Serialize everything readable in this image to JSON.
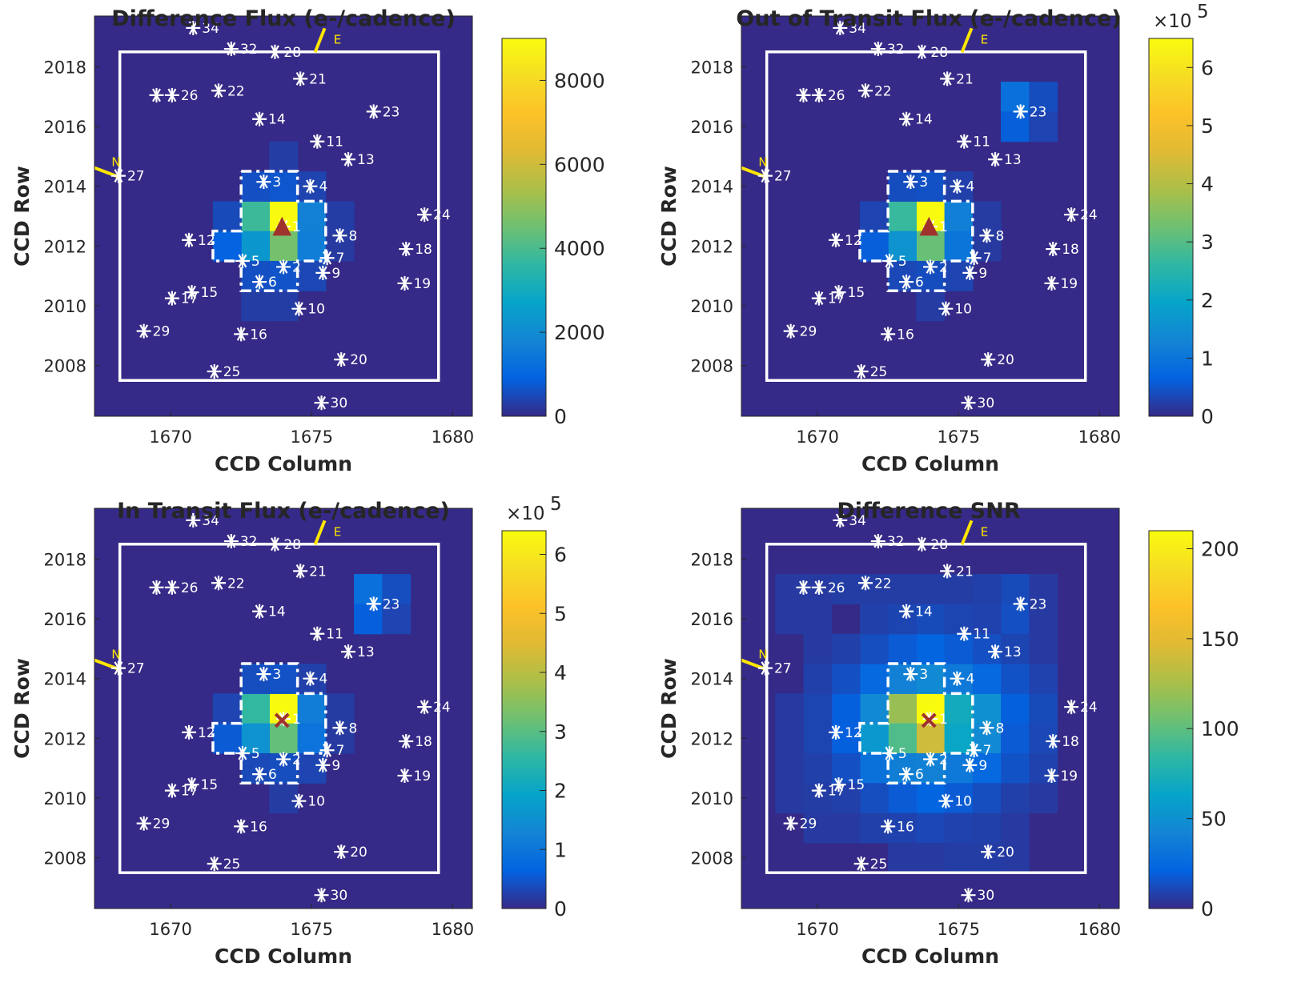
{
  "chart_data": [
    {
      "type": "heatmap",
      "title": "Difference Flux (e-/cadence)",
      "xlabel": "CCD Column",
      "ylabel": "CCD Row",
      "xlim": [
        1667.3,
        1680.7
      ],
      "ylim": [
        2006.3,
        2019.7
      ],
      "xticks": [
        1670,
        1675,
        1680
      ],
      "yticks": [
        2008,
        2010,
        2012,
        2014,
        2016,
        2018
      ],
      "clim": [
        0,
        9000
      ],
      "colorbar_ticks": [
        0,
        2000,
        4000,
        6000,
        8000
      ],
      "colorbar_exponent": "",
      "cells": [
        {
          "col": 1674,
          "row": 2013,
          "v": 9000
        },
        {
          "col": 1673,
          "row": 2013,
          "v": 3800
        },
        {
          "col": 1674,
          "row": 2012,
          "v": 4600
        },
        {
          "col": 1673,
          "row": 2012,
          "v": 2300
        },
        {
          "col": 1675,
          "row": 2013,
          "v": 1700
        },
        {
          "col": 1675,
          "row": 2012,
          "v": 1600
        },
        {
          "col": 1672,
          "row": 2012,
          "v": 900
        },
        {
          "col": 1674,
          "row": 2014,
          "v": 700
        },
        {
          "col": 1673,
          "row": 2014,
          "v": 600
        },
        {
          "col": 1674,
          "row": 2011,
          "v": 650
        },
        {
          "col": 1673,
          "row": 2011,
          "v": 600
        },
        {
          "col": 1675,
          "row": 2014,
          "v": 400
        },
        {
          "col": 1672,
          "row": 2013,
          "v": 500
        },
        {
          "col": 1675,
          "row": 2011,
          "v": 450
        },
        {
          "col": 1674,
          "row": 2015,
          "v": 300
        },
        {
          "col": 1673,
          "row": 2010,
          "v": 300
        },
        {
          "col": 1674,
          "row": 2010,
          "v": 300
        },
        {
          "col": 1676,
          "row": 2013,
          "v": 300
        },
        {
          "col": 1676,
          "row": 2012,
          "v": 250
        }
      ],
      "centroid_marker": "triangle"
    },
    {
      "type": "heatmap",
      "title": "Out of Transit Flux (e-/cadence)",
      "xlabel": "CCD Column",
      "ylabel": "CCD Row",
      "xlim": [
        1667.3,
        1680.7
      ],
      "ylim": [
        2006.3,
        2019.7
      ],
      "xticks": [
        1670,
        1675,
        1680
      ],
      "yticks": [
        2008,
        2010,
        2012,
        2014,
        2016,
        2018
      ],
      "clim": [
        0,
        6.5
      ],
      "colorbar_ticks": [
        0,
        1,
        2,
        3,
        4,
        5,
        6
      ],
      "colorbar_exponent": "5",
      "cells": [
        {
          "col": 1674,
          "row": 2013,
          "v": 6.5
        },
        {
          "col": 1673,
          "row": 2013,
          "v": 2.7
        },
        {
          "col": 1674,
          "row": 2012,
          "v": 3.2
        },
        {
          "col": 1673,
          "row": 2012,
          "v": 1.6
        },
        {
          "col": 1675,
          "row": 2013,
          "v": 1.2
        },
        {
          "col": 1675,
          "row": 2012,
          "v": 1.0
        },
        {
          "col": 1672,
          "row": 2012,
          "v": 0.6
        },
        {
          "col": 1677,
          "row": 2017,
          "v": 0.9
        },
        {
          "col": 1677,
          "row": 2016,
          "v": 0.6
        },
        {
          "col": 1678,
          "row": 2017,
          "v": 0.4
        },
        {
          "col": 1678,
          "row": 2016,
          "v": 0.3
        },
        {
          "col": 1674,
          "row": 2014,
          "v": 0.45
        },
        {
          "col": 1673,
          "row": 2014,
          "v": 0.4
        },
        {
          "col": 1674,
          "row": 2011,
          "v": 0.4
        },
        {
          "col": 1673,
          "row": 2011,
          "v": 0.35
        },
        {
          "col": 1675,
          "row": 2014,
          "v": 0.25
        },
        {
          "col": 1672,
          "row": 2013,
          "v": 0.3
        },
        {
          "col": 1675,
          "row": 2011,
          "v": 0.3
        },
        {
          "col": 1676,
          "row": 2013,
          "v": 0.2
        },
        {
          "col": 1676,
          "row": 2012,
          "v": 0.18
        },
        {
          "col": 1674,
          "row": 2010,
          "v": 0.2
        }
      ],
      "centroid_marker": "triangle"
    },
    {
      "type": "heatmap",
      "title": "In Transit Flux (e-/cadence)",
      "xlabel": "CCD Column",
      "ylabel": "CCD Row",
      "xlim": [
        1667.3,
        1680.7
      ],
      "ylim": [
        2006.3,
        2019.7
      ],
      "xticks": [
        1670,
        1675,
        1680
      ],
      "yticks": [
        2008,
        2010,
        2012,
        2014,
        2016,
        2018
      ],
      "clim": [
        0,
        6.4
      ],
      "colorbar_ticks": [
        0,
        1,
        2,
        3,
        4,
        5,
        6
      ],
      "colorbar_exponent": "5",
      "cells": [
        {
          "col": 1674,
          "row": 2013,
          "v": 6.4
        },
        {
          "col": 1673,
          "row": 2013,
          "v": 2.6
        },
        {
          "col": 1674,
          "row": 2012,
          "v": 3.1
        },
        {
          "col": 1673,
          "row": 2012,
          "v": 1.55
        },
        {
          "col": 1675,
          "row": 2013,
          "v": 1.15
        },
        {
          "col": 1675,
          "row": 2012,
          "v": 0.95
        },
        {
          "col": 1672,
          "row": 2012,
          "v": 0.55
        },
        {
          "col": 1677,
          "row": 2017,
          "v": 0.9
        },
        {
          "col": 1677,
          "row": 2016,
          "v": 0.6
        },
        {
          "col": 1678,
          "row": 2017,
          "v": 0.4
        },
        {
          "col": 1678,
          "row": 2016,
          "v": 0.3
        },
        {
          "col": 1674,
          "row": 2014,
          "v": 0.45
        },
        {
          "col": 1673,
          "row": 2014,
          "v": 0.4
        },
        {
          "col": 1674,
          "row": 2011,
          "v": 0.4
        },
        {
          "col": 1673,
          "row": 2011,
          "v": 0.35
        },
        {
          "col": 1675,
          "row": 2014,
          "v": 0.25
        },
        {
          "col": 1672,
          "row": 2013,
          "v": 0.3
        },
        {
          "col": 1675,
          "row": 2011,
          "v": 0.3
        },
        {
          "col": 1676,
          "row": 2013,
          "v": 0.2
        },
        {
          "col": 1676,
          "row": 2012,
          "v": 0.18
        },
        {
          "col": 1674,
          "row": 2010,
          "v": 0.2
        }
      ],
      "centroid_marker": "cross"
    },
    {
      "type": "heatmap",
      "title": "Difference SNR",
      "xlabel": "CCD Column",
      "ylabel": "CCD Row",
      "xlim": [
        1667.3,
        1680.7
      ],
      "ylim": [
        2006.3,
        2019.7
      ],
      "xticks": [
        1670,
        1675,
        1680
      ],
      "yticks": [
        2008,
        2010,
        2012,
        2014,
        2016,
        2018
      ],
      "clim": [
        0,
        210
      ],
      "colorbar_ticks": [
        0,
        50,
        100,
        150,
        200
      ],
      "colorbar_exponent": "",
      "cells": [
        {
          "col": 1674,
          "row": 2013,
          "v": 210
        },
        {
          "col": 1674,
          "row": 2012,
          "v": 140
        },
        {
          "col": 1673,
          "row": 2013,
          "v": 120
        },
        {
          "col": 1673,
          "row": 2012,
          "v": 95
        },
        {
          "col": 1675,
          "row": 2013,
          "v": 70
        },
        {
          "col": 1675,
          "row": 2012,
          "v": 65
        },
        {
          "col": 1676,
          "row": 2013,
          "v": 50
        },
        {
          "col": 1676,
          "row": 2012,
          "v": 45
        },
        {
          "col": 1672,
          "row": 2012,
          "v": 55
        },
        {
          "col": 1672,
          "row": 2013,
          "v": 45
        },
        {
          "col": 1674,
          "row": 2014,
          "v": 45
        },
        {
          "col": 1673,
          "row": 2014,
          "v": 40
        },
        {
          "col": 1675,
          "row": 2014,
          "v": 35
        },
        {
          "col": 1674,
          "row": 2011,
          "v": 40
        },
        {
          "col": 1673,
          "row": 2011,
          "v": 38
        },
        {
          "col": 1675,
          "row": 2011,
          "v": 35
        },
        {
          "col": 1676,
          "row": 2014,
          "v": 25
        },
        {
          "col": 1676,
          "row": 2011,
          "v": 25
        },
        {
          "col": 1672,
          "row": 2011,
          "v": 30
        },
        {
          "col": 1672,
          "row": 2014,
          "v": 25
        },
        {
          "col": 1671,
          "row": 2013,
          "v": 20
        },
        {
          "col": 1671,
          "row": 2012,
          "v": 20
        },
        {
          "col": 1677,
          "row": 2013,
          "v": 20
        },
        {
          "col": 1677,
          "row": 2012,
          "v": 18
        },
        {
          "col": 1674,
          "row": 2015,
          "v": 22
        },
        {
          "col": 1673,
          "row": 2015,
          "v": 18
        },
        {
          "col": 1675,
          "row": 2015,
          "v": 18
        },
        {
          "col": 1674,
          "row": 2010,
          "v": 22
        },
        {
          "col": 1673,
          "row": 2010,
          "v": 18
        },
        {
          "col": 1675,
          "row": 2010,
          "v": 18
        },
        {
          "col": 1677,
          "row": 2014,
          "v": 15
        },
        {
          "col": 1677,
          "row": 2011,
          "v": 15
        },
        {
          "col": 1671,
          "row": 2014,
          "v": 14
        },
        {
          "col": 1671,
          "row": 2011,
          "v": 14
        },
        {
          "col": 1676,
          "row": 2015,
          "v": 14
        },
        {
          "col": 1672,
          "row": 2015,
          "v": 13
        },
        {
          "col": 1676,
          "row": 2010,
          "v": 13
        },
        {
          "col": 1672,
          "row": 2010,
          "v": 13
        },
        {
          "col": 1678,
          "row": 2013,
          "v": 12
        },
        {
          "col": 1678,
          "row": 2012,
          "v": 11
        },
        {
          "col": 1670,
          "row": 2013,
          "v": 10
        },
        {
          "col": 1670,
          "row": 2012,
          "v": 10
        },
        {
          "col": 1674,
          "row": 2016,
          "v": 12
        },
        {
          "col": 1673,
          "row": 2016,
          "v": 10
        },
        {
          "col": 1675,
          "row": 2016,
          "v": 10
        },
        {
          "col": 1674,
          "row": 2009,
          "v": 11
        },
        {
          "col": 1673,
          "row": 2009,
          "v": 9
        },
        {
          "col": 1675,
          "row": 2009,
          "v": 9
        },
        {
          "col": 1677,
          "row": 2016,
          "v": 14
        },
        {
          "col": 1677,
          "row": 2017,
          "v": 12
        },
        {
          "col": 1676,
          "row": 2016,
          "v": 9
        },
        {
          "col": 1676,
          "row": 2017,
          "v": 8
        },
        {
          "col": 1678,
          "row": 2014,
          "v": 9
        },
        {
          "col": 1678,
          "row": 2011,
          "v": 9
        },
        {
          "col": 1670,
          "row": 2014,
          "v": 8
        },
        {
          "col": 1670,
          "row": 2011,
          "v": 8
        },
        {
          "col": 1676,
          "row": 2009,
          "v": 8
        },
        {
          "col": 1672,
          "row": 2009,
          "v": 8
        },
        {
          "col": 1672,
          "row": 2016,
          "v": 8
        },
        {
          "col": 1671,
          "row": 2015,
          "v": 8
        },
        {
          "col": 1671,
          "row": 2010,
          "v": 8
        },
        {
          "col": 1677,
          "row": 2015,
          "v": 10
        },
        {
          "col": 1677,
          "row": 2010,
          "v": 8
        },
        {
          "col": 1675,
          "row": 2017,
          "v": 7
        },
        {
          "col": 1674,
          "row": 2017,
          "v": 7
        },
        {
          "col": 1673,
          "row": 2017,
          "v": 7
        },
        {
          "col": 1672,
          "row": 2017,
          "v": 7
        },
        {
          "col": 1671,
          "row": 2017,
          "v": 7
        },
        {
          "col": 1675,
          "row": 2008,
          "v": 7
        },
        {
          "col": 1676,
          "row": 2008,
          "v": 7
        },
        {
          "col": 1674,
          "row": 2008,
          "v": 6
        },
        {
          "col": 1673,
          "row": 2008,
          "v": 6
        },
        {
          "col": 1669,
          "row": 2013,
          "v": 6
        },
        {
          "col": 1669,
          "row": 2012,
          "v": 6
        },
        {
          "col": 1669,
          "row": 2011,
          "v": 6
        },
        {
          "col": 1669,
          "row": 2010,
          "v": 6
        },
        {
          "col": 1670,
          "row": 2010,
          "v": 7
        },
        {
          "col": 1670,
          "row": 2009,
          "v": 6
        },
        {
          "col": 1671,
          "row": 2009,
          "v": 6
        },
        {
          "col": 1678,
          "row": 2010,
          "v": 6
        },
        {
          "col": 1678,
          "row": 2015,
          "v": 6
        },
        {
          "col": 1670,
          "row": 2015,
          "v": 6
        },
        {
          "col": 1669,
          "row": 2016,
          "v": 6
        },
        {
          "col": 1669,
          "row": 2017,
          "v": 6
        },
        {
          "col": 1670,
          "row": 2016,
          "v": 6
        },
        {
          "col": 1670,
          "row": 2017,
          "v": 6
        },
        {
          "col": 1678,
          "row": 2016,
          "v": 6
        },
        {
          "col": 1678,
          "row": 2017,
          "v": 6
        },
        {
          "col": 1677,
          "row": 2009,
          "v": 6
        },
        {
          "col": 1677,
          "row": 2008,
          "v": 6
        }
      ],
      "centroid_marker": "cross"
    }
  ],
  "stars": [
    {
      "id": "1",
      "col": 1674.0,
      "row": 2012.65
    },
    {
      "id": "2",
      "col": 1674.0,
      "row": 2011.3
    },
    {
      "id": "3",
      "col": 1673.3,
      "row": 2014.15
    },
    {
      "id": "4",
      "col": 1674.95,
      "row": 2014.0
    },
    {
      "id": "5",
      "col": 1672.55,
      "row": 2011.5
    },
    {
      "id": "6",
      "col": 1673.15,
      "row": 2010.8
    },
    {
      "id": "7",
      "col": 1675.55,
      "row": 2011.6
    },
    {
      "id": "8",
      "col": 1676.0,
      "row": 2012.35
    },
    {
      "id": "9",
      "col": 1675.4,
      "row": 2011.1
    },
    {
      "id": "10",
      "col": 1674.55,
      "row": 2009.9
    },
    {
      "id": "11",
      "col": 1675.2,
      "row": 2015.5
    },
    {
      "id": "12",
      "col": 1670.65,
      "row": 2012.2
    },
    {
      "id": "13",
      "col": 1676.3,
      "row": 2014.9
    },
    {
      "id": "14",
      "col": 1673.15,
      "row": 2016.25
    },
    {
      "id": "15",
      "col": 1670.75,
      "row": 2010.45
    },
    {
      "id": "16",
      "col": 1672.5,
      "row": 2009.05
    },
    {
      "id": "17",
      "col": 1670.05,
      "row": 2010.25
    },
    {
      "id": "18",
      "col": 1678.35,
      "row": 2011.9
    },
    {
      "id": "19",
      "col": 1678.3,
      "row": 2010.75
    },
    {
      "id": "20",
      "col": 1676.05,
      "row": 2008.2
    },
    {
      "id": "21",
      "col": 1674.6,
      "row": 2017.6
    },
    {
      "id": "22",
      "col": 1671.7,
      "row": 2017.2
    },
    {
      "id": "23",
      "col": 1677.2,
      "row": 2016.5
    },
    {
      "id": "24",
      "col": 1679.0,
      "row": 2013.05
    },
    {
      "id": "25",
      "col": 1671.55,
      "row": 2007.8
    },
    {
      "id": "26",
      "col": 1670.05,
      "row": 2017.05
    },
    {
      "id": "27",
      "col": 1668.15,
      "row": 2014.35
    },
    {
      "id": "28",
      "col": 1673.7,
      "row": 2018.5
    },
    {
      "id": "29",
      "col": 1669.05,
      "row": 2009.15
    },
    {
      "id": "30",
      "col": 1675.35,
      "row": 2006.75
    },
    {
      "id": "32",
      "col": 1672.15,
      "row": 2018.6
    },
    {
      "id": "34",
      "col": 1670.8,
      "row": 2019.3
    },
    {
      "id": "",
      "col": 1669.5,
      "row": 2017.05
    }
  ],
  "target_centroid": {
    "col": 1673.95,
    "row": 2012.6
  },
  "compass": {
    "north_label": "N",
    "east_label": "E"
  },
  "colors": {
    "background": "#352a87",
    "star": "#ffffff",
    "compass": "#ffe600",
    "centroid_triangle": "#a0322d",
    "centroid_cross": "#a0322d"
  }
}
